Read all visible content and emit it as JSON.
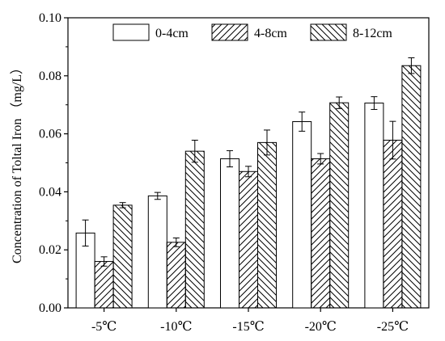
{
  "chart_data": {
    "type": "bar",
    "title": "",
    "xlabel": "",
    "ylabel": "Concentration of Toltal Iron （mg/L）",
    "ylim": [
      0,
      0.1
    ],
    "yticks": [
      "0.00",
      "0.02",
      "0.04",
      "0.06",
      "0.08",
      "0.10"
    ],
    "categories": [
      "-5℃",
      "-10℃",
      "-15℃",
      "-20℃",
      "-25℃"
    ],
    "legend_position": "top",
    "grid": false,
    "series": [
      {
        "name": "0-4cm",
        "pattern": "none",
        "values": [
          0.0258,
          0.0386,
          0.0514,
          0.0642,
          0.0706
        ],
        "errors": [
          0.0045,
          0.0012,
          0.0028,
          0.0033,
          0.0022
        ]
      },
      {
        "name": "4-8cm",
        "pattern": "hatch-forward",
        "values": [
          0.016,
          0.0226,
          0.047,
          0.0514,
          0.0578
        ],
        "errors": [
          0.0016,
          0.0015,
          0.0018,
          0.0018,
          0.0065
        ]
      },
      {
        "name": "8-12cm",
        "pattern": "hatch-backward",
        "values": [
          0.0354,
          0.054,
          0.057,
          0.0707,
          0.0835
        ],
        "errors": [
          0.0009,
          0.0038,
          0.0043,
          0.002,
          0.0027
        ]
      }
    ]
  }
}
